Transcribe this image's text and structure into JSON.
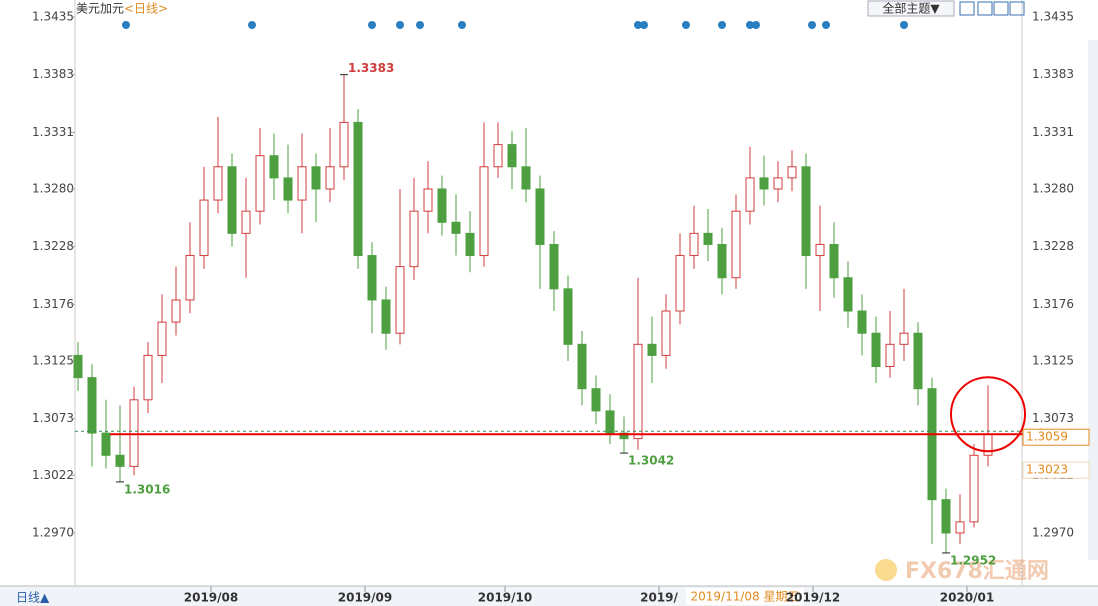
{
  "chart_data": {
    "type": "candlestick",
    "title": "美元加元",
    "period": "<日线>",
    "theme_button": "全部主题▼",
    "period_button": "日线▲",
    "crosshair_date": "2019/11/08 星期五",
    "watermark": "FX678汇通网",
    "up_color": "#d03c3c",
    "down_color": "#4e9f40",
    "ylim": [
      1.29231,
      1.34503
    ],
    "yticks": [
      1.3435,
      1.3383,
      1.3331,
      {
        "value": 1.328,
        "label": "1.3280"
      },
      1.3228,
      1.3176,
      1.3125,
      1.3073,
      1.3022,
      {
        "value": 1.297,
        "label": "1.2970"
      }
    ],
    "categories": [
      null,
      null,
      null,
      null,
      null,
      null,
      null,
      null,
      null,
      null,
      "2019/08",
      null,
      null,
      null,
      null,
      null,
      null,
      null,
      null,
      null,
      null,
      "2019/09",
      null,
      null,
      null,
      null,
      null,
      null,
      null,
      null,
      null,
      "2019/10",
      null,
      null,
      null,
      null,
      null,
      null,
      null,
      null,
      null,
      null,
      "2019/",
      null,
      null,
      null,
      null,
      null,
      null,
      null,
      null,
      null,
      null,
      "2019/12",
      null,
      null,
      null,
      null,
      null,
      null,
      null,
      null,
      null,
      null,
      "2020/01",
      null
    ],
    "open": [
      1.313,
      1.311,
      1.306,
      1.304,
      1.303,
      1.309,
      1.313,
      1.316,
      1.318,
      1.322,
      1.327,
      1.33,
      1.324,
      1.326,
      1.331,
      1.329,
      1.327,
      1.33,
      1.328,
      1.33,
      1.334,
      1.322,
      1.318,
      1.315,
      1.321,
      1.326,
      1.328,
      1.325,
      1.324,
      1.322,
      1.33,
      1.332,
      1.33,
      1.328,
      1.323,
      1.319,
      1.314,
      1.31,
      1.308,
      1.306,
      1.3055,
      1.314,
      1.313,
      1.317,
      1.322,
      1.324,
      1.323,
      1.32,
      1.326,
      1.329,
      1.328,
      1.329,
      1.33,
      1.322,
      1.323,
      1.32,
      1.317,
      1.315,
      1.312,
      1.314,
      1.315,
      1.31,
      1.3,
      1.297,
      1.298,
      1.304
    ],
    "high": [
      1.3142,
      1.3122,
      1.309,
      1.3085,
      1.3102,
      1.3142,
      1.3185,
      1.321,
      1.325,
      1.33,
      1.3345,
      1.3312,
      1.329,
      1.3335,
      1.333,
      1.332,
      1.333,
      1.3312,
      1.3335,
      1.3383,
      1.3352,
      1.3232,
      1.3192,
      1.328,
      1.329,
      1.3305,
      1.3292,
      1.3275,
      1.326,
      1.334,
      1.334,
      1.3332,
      1.3335,
      1.3292,
      1.3242,
      1.3202,
      1.3152,
      1.3112,
      1.3095,
      1.3075,
      1.32,
      1.3165,
      1.3185,
      1.324,
      1.3265,
      1.3262,
      1.3245,
      1.3275,
      1.3318,
      1.331,
      1.3305,
      1.3315,
      1.3312,
      1.3265,
      1.325,
      1.3215,
      1.3185,
      1.3165,
      1.317,
      1.319,
      1.316,
      1.311,
      1.301,
      1.3005,
      1.305,
      1.3103
    ],
    "low": [
      1.3098,
      1.303,
      1.3028,
      1.3016,
      1.3022,
      1.3078,
      1.3105,
      1.3148,
      1.3168,
      1.3208,
      1.3258,
      1.3228,
      1.32,
      1.3248,
      1.327,
      1.3258,
      1.324,
      1.325,
      1.3268,
      1.3288,
      1.3208,
      1.315,
      1.3135,
      1.314,
      1.3198,
      1.324,
      1.3238,
      1.322,
      1.3205,
      1.321,
      1.329,
      1.328,
      1.3268,
      1.319,
      1.317,
      1.3125,
      1.3085,
      1.3068,
      1.305,
      1.3042,
      1.3045,
      1.3105,
      1.3118,
      1.3158,
      1.3208,
      1.3215,
      1.3185,
      1.319,
      1.3248,
      1.3265,
      1.3268,
      1.3278,
      1.319,
      1.317,
      1.3182,
      1.3155,
      1.313,
      1.3105,
      1.311,
      1.3125,
      1.3085,
      1.296,
      1.2952,
      1.296,
      1.2975,
      1.303
    ],
    "close": [
      1.311,
      1.306,
      1.304,
      1.303,
      1.309,
      1.313,
      1.316,
      1.318,
      1.322,
      1.327,
      1.33,
      1.324,
      1.326,
      1.331,
      1.329,
      1.327,
      1.33,
      1.328,
      1.33,
      1.334,
      1.322,
      1.318,
      1.315,
      1.321,
      1.326,
      1.328,
      1.325,
      1.324,
      1.322,
      1.33,
      1.332,
      1.33,
      1.328,
      1.323,
      1.319,
      1.314,
      1.31,
      1.308,
      1.306,
      1.3055,
      1.314,
      1.313,
      1.317,
      1.322,
      1.324,
      1.323,
      1.32,
      1.326,
      1.329,
      1.328,
      1.329,
      1.33,
      1.322,
      1.323,
      1.32,
      1.317,
      1.315,
      1.312,
      1.314,
      1.315,
      1.31,
      1.3,
      1.297,
      1.298,
      1.304,
      1.3059
    ],
    "annotations": [
      1.3016,
      1.3383,
      1.3042,
      1.2952
    ],
    "price_labels": [
      1.3059,
      1.3023
    ]
  }
}
